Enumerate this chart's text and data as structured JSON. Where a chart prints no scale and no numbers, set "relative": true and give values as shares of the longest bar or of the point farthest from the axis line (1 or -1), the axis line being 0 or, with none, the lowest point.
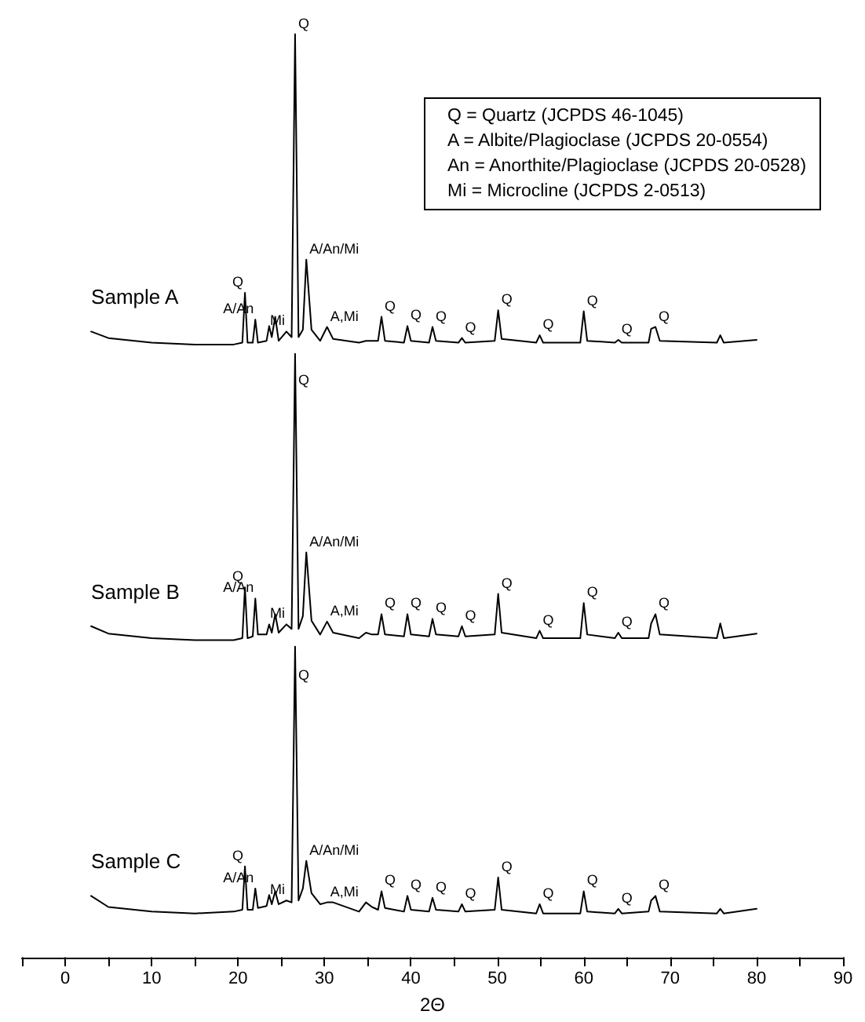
{
  "chart_data": {
    "type": "line",
    "relative": true,
    "xlabel": "2Θ",
    "xlim": [
      -5,
      90
    ],
    "xticks": [
      {
        "value": -5,
        "label": null
      },
      0,
      {
        "value": 5,
        "label": null
      },
      10,
      {
        "value": 15,
        "label": null
      },
      20,
      {
        "value": 25,
        "label": null
      },
      30,
      {
        "value": 35,
        "label": null
      },
      40,
      {
        "value": 45,
        "label": null
      },
      50,
      {
        "value": 55,
        "label": null
      },
      60,
      {
        "value": 65,
        "label": null
      },
      70,
      {
        "value": 75,
        "label": null
      },
      80,
      {
        "value": 85,
        "label": null
      },
      90
    ],
    "grid": false,
    "legend": false,
    "marker": "none",
    "line_style": "solid",
    "x": [
      3,
      5,
      10,
      15,
      19.5,
      20.5,
      20.8,
      21.1,
      21.7,
      22.0,
      22.3,
      23.3,
      23.6,
      23.9,
      24.3,
      24.7,
      25.6,
      26.2,
      26.6,
      27.0,
      27.5,
      27.9,
      28.5,
      29.5,
      30.3,
      31,
      34,
      34.8,
      35.5,
      36.2,
      36.6,
      37.0,
      39.2,
      39.6,
      40.0,
      42.1,
      42.5,
      42.9,
      45.5,
      45.9,
      46.3,
      49.7,
      50.1,
      50.5,
      54.5,
      54.9,
      55.3,
      59.6,
      60.0,
      60.4,
      63.6,
      64.0,
      64.4,
      67.5,
      67.8,
      68.3,
      68.8,
      75.4,
      75.8,
      76.2,
      80
    ],
    "series": [
      {
        "name": "Sample A",
        "color": "#000000",
        "values": [
          0.678,
          0.671,
          0.666,
          0.664,
          0.664,
          0.666,
          0.72,
          0.666,
          0.666,
          0.691,
          0.666,
          0.668,
          0.684,
          0.672,
          0.694,
          0.668,
          0.678,
          0.672,
          1.0,
          0.672,
          0.68,
          0.756,
          0.68,
          0.668,
          0.683,
          0.67,
          0.666,
          0.668,
          0.668,
          0.668,
          0.694,
          0.668,
          0.666,
          0.684,
          0.668,
          0.666,
          0.683,
          0.668,
          0.666,
          0.671,
          0.666,
          0.668,
          0.701,
          0.67,
          0.666,
          0.674,
          0.666,
          0.666,
          0.7,
          0.668,
          0.666,
          0.669,
          0.666,
          0.666,
          0.681,
          0.683,
          0.668,
          0.666,
          0.674,
          0.666,
          0.669
        ]
      },
      {
        "name": "Sample B",
        "color": "#000000",
        "values": [
          0.359,
          0.351,
          0.346,
          0.344,
          0.344,
          0.346,
          0.401,
          0.346,
          0.348,
          0.389,
          0.35,
          0.35,
          0.361,
          0.352,
          0.372,
          0.352,
          0.361,
          0.356,
          0.654,
          0.356,
          0.37,
          0.439,
          0.365,
          0.35,
          0.364,
          0.352,
          0.346,
          0.352,
          0.35,
          0.35,
          0.372,
          0.35,
          0.348,
          0.372,
          0.35,
          0.348,
          0.367,
          0.35,
          0.348,
          0.359,
          0.348,
          0.35,
          0.394,
          0.352,
          0.346,
          0.354,
          0.346,
          0.346,
          0.384,
          0.35,
          0.346,
          0.352,
          0.346,
          0.346,
          0.362,
          0.372,
          0.35,
          0.346,
          0.362,
          0.346,
          0.351
        ]
      },
      {
        "name": "Sample C",
        "color": "#000000",
        "values": [
          0.067,
          0.055,
          0.05,
          0.048,
          0.05,
          0.052,
          0.099,
          0.052,
          0.052,
          0.075,
          0.054,
          0.056,
          0.068,
          0.058,
          0.072,
          0.058,
          0.062,
          0.06,
          0.337,
          0.062,
          0.075,
          0.105,
          0.07,
          0.058,
          0.06,
          0.06,
          0.05,
          0.06,
          0.055,
          0.052,
          0.072,
          0.054,
          0.05,
          0.067,
          0.052,
          0.05,
          0.065,
          0.052,
          0.05,
          0.058,
          0.05,
          0.052,
          0.087,
          0.052,
          0.048,
          0.058,
          0.048,
          0.048,
          0.072,
          0.05,
          0.048,
          0.053,
          0.048,
          0.05,
          0.062,
          0.067,
          0.05,
          0.048,
          0.053,
          0.048,
          0.053
        ]
      }
    ],
    "annotations": [
      "Q = Quartz (JCPDS 46-1045)",
      "A = Albite/Plagioclase (JCPDS 20-0554)",
      "An = Anorthite/Plagioclase (JCPDS 20-0528)",
      "Mi = Microcline (JCPDS 2-0513)",
      {
        "text": "Q",
        "x": 26.6,
        "y": 1.0
      },
      {
        "text": "Q",
        "x": 20.8,
        "y": 0.72
      },
      {
        "text": "A/An",
        "x": 22.0,
        "y": 0.691
      },
      {
        "text": "Mi",
        "x": 25.6,
        "y": 0.678
      },
      {
        "text": "A/An/Mi",
        "x": 27.9,
        "y": 0.756
      },
      {
        "text": "A,Mi",
        "x": 30.3,
        "y": 0.683
      },
      {
        "text": "Q",
        "x": 36.6,
        "y": 0.694
      },
      {
        "text": "Q",
        "x": 39.6,
        "y": 0.684
      },
      {
        "text": "Q",
        "x": 42.5,
        "y": 0.683
      },
      {
        "text": "Q",
        "x": 45.9,
        "y": 0.671
      },
      {
        "text": "Q",
        "x": 50.1,
        "y": 0.701
      },
      {
        "text": "Q",
        "x": 54.9,
        "y": 0.674
      },
      {
        "text": "Q",
        "x": 60.0,
        "y": 0.7
      },
      {
        "text": "Q",
        "x": 64.0,
        "y": 0.669
      },
      {
        "text": "Q",
        "x": 68.3,
        "y": 0.683
      },
      {
        "text": "Q",
        "x": 26.6,
        "y": 0.614
      },
      {
        "text": "Q",
        "x": 20.8,
        "y": 0.401
      },
      {
        "text": "A/An",
        "x": 22.0,
        "y": 0.389
      },
      {
        "text": "Mi",
        "x": 25.6,
        "y": 0.361
      },
      {
        "text": "A/An/Mi",
        "x": 27.9,
        "y": 0.439
      },
      {
        "text": "A,Mi",
        "x": 30.3,
        "y": 0.364
      },
      {
        "text": "Q",
        "x": 36.6,
        "y": 0.372
      },
      {
        "text": "Q",
        "x": 39.6,
        "y": 0.372
      },
      {
        "text": "Q",
        "x": 42.5,
        "y": 0.367
      },
      {
        "text": "Q",
        "x": 45.9,
        "y": 0.359
      },
      {
        "text": "Q",
        "x": 50.1,
        "y": 0.394
      },
      {
        "text": "Q",
        "x": 54.9,
        "y": 0.354
      },
      {
        "text": "Q",
        "x": 60.0,
        "y": 0.384
      },
      {
        "text": "Q",
        "x": 64.0,
        "y": 0.352
      },
      {
        "text": "Q",
        "x": 68.3,
        "y": 0.372
      },
      {
        "text": "Q",
        "x": 26.6,
        "y": 0.294
      },
      {
        "text": "Q",
        "x": 20.8,
        "y": 0.099
      },
      {
        "text": "A/An",
        "x": 22.0,
        "y": 0.075
      },
      {
        "text": "Mi",
        "x": 25.6,
        "y": 0.062
      },
      {
        "text": "A/An/Mi",
        "x": 27.9,
        "y": 0.105
      },
      {
        "text": "A,Mi",
        "x": 30.3,
        "y": 0.06
      },
      {
        "text": "Q",
        "x": 36.6,
        "y": 0.072
      },
      {
        "text": "Q",
        "x": 39.6,
        "y": 0.067
      },
      {
        "text": "Q",
        "x": 42.5,
        "y": 0.065
      },
      {
        "text": "Q",
        "x": 45.9,
        "y": 0.058
      },
      {
        "text": "Q",
        "x": 50.1,
        "y": 0.087
      },
      {
        "text": "Q",
        "x": 54.9,
        "y": 0.058
      },
      {
        "text": "Q",
        "x": 60.0,
        "y": 0.072
      },
      {
        "text": "Q",
        "x": 64.0,
        "y": 0.053
      },
      {
        "text": "Q",
        "x": 68.3,
        "y": 0.067
      }
    ]
  }
}
